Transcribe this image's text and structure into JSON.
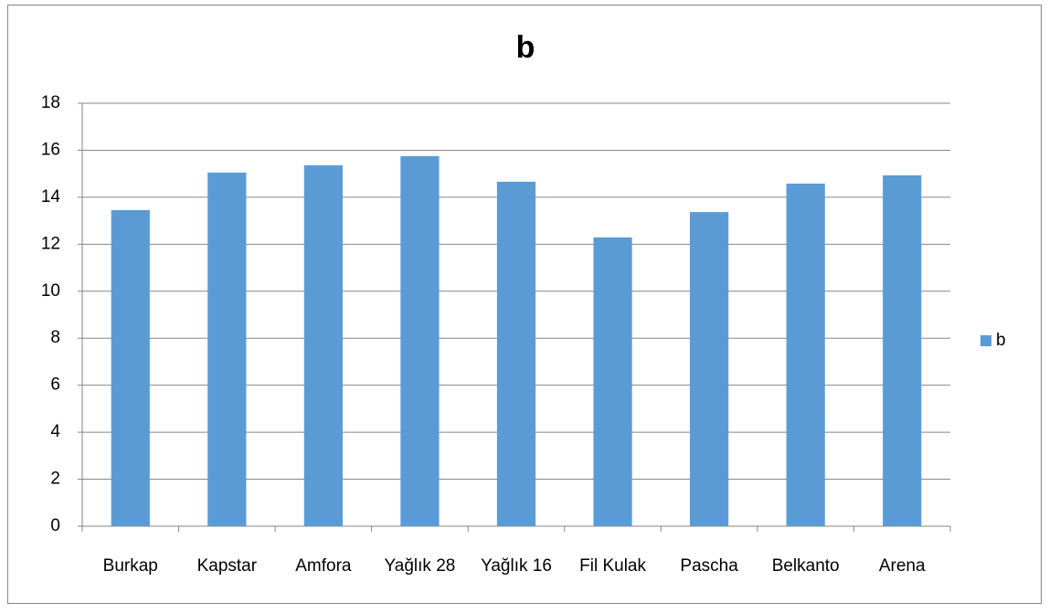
{
  "chart_data": {
    "type": "bar",
    "title": "b",
    "categories": [
      "Burkap",
      "Kapstar",
      "Amfora",
      "Yağlık 28",
      "Yağlık 16",
      "Fil Kulak",
      "Pascha",
      "Belkanto",
      "Arena"
    ],
    "series": [
      {
        "name": "b",
        "color": "#5b9bd5",
        "values": [
          13.45,
          15.05,
          15.36,
          15.75,
          14.66,
          12.29,
          13.37,
          14.58,
          14.93
        ]
      }
    ],
    "ylim": [
      0,
      18
    ],
    "yticks": [
      0,
      2,
      4,
      6,
      8,
      10,
      12,
      14,
      16,
      18
    ],
    "grid": true,
    "legend": "right"
  }
}
